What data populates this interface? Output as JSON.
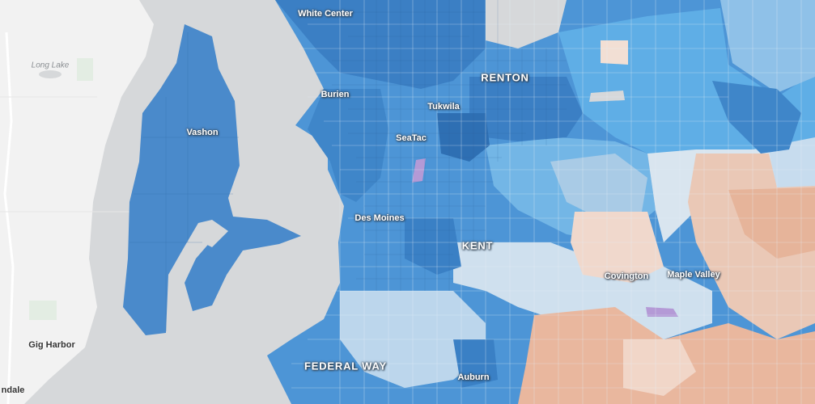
{
  "map": {
    "labels": {
      "white_center": "White Center",
      "renton": "RENTON",
      "burien": "Burien",
      "tukwila": "Tukwila",
      "vashon": "Vashon",
      "seatac": "SeaTac",
      "des_moines": "Des Moines",
      "kent": "KENT",
      "covington": "Covington",
      "maple_valley": "Maple Valley",
      "gig_harbor": "Gig Harbor",
      "federal_way": "FEDERAL WAY",
      "auburn": "Auburn",
      "long_lake": "Long Lake",
      "partial_left": "ndale"
    },
    "colors": {
      "water": "#d6d8da",
      "land": "#f2f2f2",
      "dark_blue": "#3b7fc4",
      "mid_blue": "#5ba3dd",
      "light_blue": "#a9cbe6",
      "pale_blue": "#cfe0ee",
      "neutral": "#e6e8ea",
      "pale_orange": "#f2d9cc",
      "orange": "#e9b398",
      "purple": "#b49ad6"
    }
  }
}
